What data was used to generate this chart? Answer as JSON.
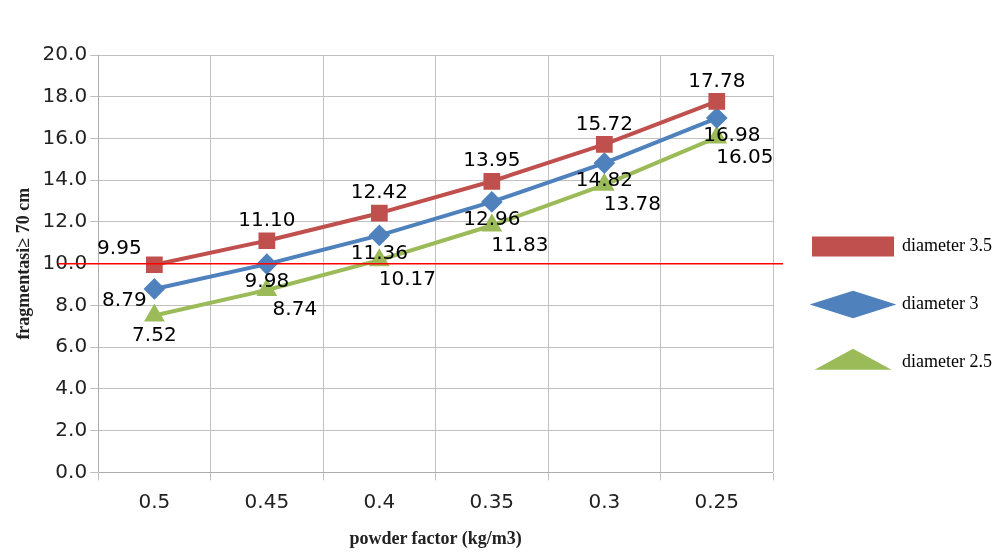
{
  "chart_data": {
    "type": "line",
    "xlabel": "powder factor (kg/m3)",
    "ylabel": "fragmentasi≥ 70 cm",
    "categories": [
      "0.5",
      "0.45",
      "0.4",
      "0.35",
      "0.3",
      "0.25"
    ],
    "series": [
      {
        "name": "diameter 3.5",
        "color": "#c0504d",
        "marker": "square",
        "values": [
          9.95,
          11.1,
          12.42,
          13.95,
          15.72,
          17.78
        ],
        "value_labels": [
          "9.95",
          "11.10",
          "12.42",
          "13.95",
          "15.72",
          "17.78"
        ]
      },
      {
        "name": "diameter 3",
        "color": "#4f81bd",
        "marker": "diamond",
        "values": [
          8.79,
          9.98,
          11.36,
          12.96,
          14.82,
          16.98
        ],
        "value_labels": [
          "8.79",
          "9.98",
          "11.36",
          "12.96",
          "14.82",
          "16.98"
        ]
      },
      {
        "name": "diameter 2.5",
        "color": "#9bbb59",
        "marker": "triangle",
        "values": [
          7.52,
          8.74,
          10.17,
          11.83,
          13.78,
          16.05
        ],
        "value_labels": [
          "7.52",
          "8.74",
          "10.17",
          "11.83",
          "13.78",
          "16.05"
        ]
      }
    ],
    "ylim": [
      0,
      20
    ],
    "yticks": [
      {
        "value": 0,
        "label": "0.0"
      },
      {
        "value": 2,
        "label": "2.0"
      },
      {
        "value": 4,
        "label": "4.0"
      },
      {
        "value": 6,
        "label": "6.0"
      },
      {
        "value": 8,
        "label": "8.0"
      },
      {
        "value": 10,
        "label": "10.0"
      },
      {
        "value": 12,
        "label": "12.0"
      },
      {
        "value": 14,
        "label": "14.0"
      },
      {
        "value": 16,
        "label": "16.0"
      },
      {
        "value": 18,
        "label": "18.0"
      },
      {
        "value": 20,
        "label": "20.0"
      }
    ],
    "ref_lines": [
      {
        "axis": "y",
        "value": 10,
        "color": "#ff0000"
      }
    ],
    "grid": true,
    "legend": "right"
  }
}
